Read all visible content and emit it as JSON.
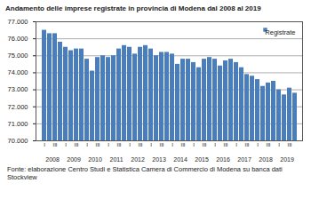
{
  "chart_data": {
    "type": "bar",
    "title": "Andamento delle imprese registrate in provincia di Modena dal 2008 al 2019",
    "caption": "Fonte: elaborazione Centro Studi e Statistica Camera di Commercio di Modena su banca dati Stockview",
    "categories": [
      "I",
      null,
      "III",
      null,
      "I",
      null,
      "III",
      null,
      "I",
      null,
      "III",
      null,
      "I",
      null,
      "III",
      null,
      "I",
      null,
      "III",
      null,
      "I",
      null,
      "III",
      null,
      "I",
      null,
      "III",
      null,
      "I",
      null,
      "III",
      null,
      "I",
      null,
      "III",
      null,
      "I",
      null,
      "III",
      null,
      "I",
      null,
      "III",
      null,
      "I",
      null,
      "III",
      null
    ],
    "x_groups": [
      "2008",
      "2009",
      "2010",
      "2011",
      "2012",
      "2013",
      "2014",
      "2015",
      "2016",
      "2017",
      "2018",
      "2019"
    ],
    "series": [
      {
        "name": "Registrate",
        "color": "#4a7ebb",
        "values": [
          76500,
          76300,
          76300,
          75800,
          75500,
          75300,
          75400,
          75400,
          74800,
          74100,
          74900,
          75000,
          74900,
          75000,
          75400,
          75600,
          75500,
          75100,
          75500,
          75600,
          75400,
          75000,
          75200,
          75200,
          75100,
          74500,
          74800,
          74800,
          74600,
          74300,
          74800,
          74900,
          74800,
          74400,
          74700,
          74800,
          74600,
          74300,
          73900,
          73800,
          73600,
          73200,
          73400,
          73500,
          73000,
          72700,
          73100,
          72800
        ]
      }
    ],
    "ylim": [
      70000,
      77000
    ],
    "yticks": [
      {
        "value": 70000,
        "label": "70.000"
      },
      {
        "value": 71000,
        "label": "71.000"
      },
      {
        "value": 72000,
        "label": "72.000"
      },
      {
        "value": 73000,
        "label": "73.000"
      },
      {
        "value": 74000,
        "label": "74.000"
      },
      {
        "value": 75000,
        "label": "75.000"
      },
      {
        "value": 76000,
        "label": "76.000"
      },
      {
        "value": 77000,
        "label": "77.000"
      }
    ],
    "grid": true,
    "legend": "top-right"
  }
}
